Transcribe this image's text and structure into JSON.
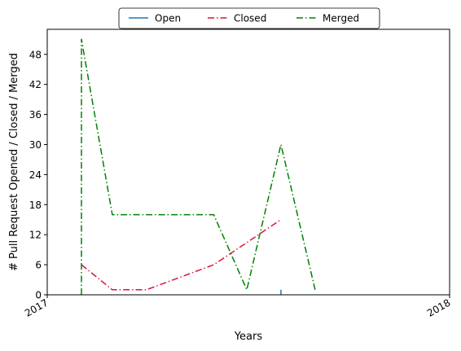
{
  "chart_data": {
    "type": "line",
    "xlabel": "Years",
    "ylabel": "# Pull Request Opened / Closed / Merged",
    "x_ticks": [
      "2017",
      "2018"
    ],
    "y_ticks": [
      0,
      6,
      12,
      18,
      24,
      30,
      36,
      42,
      48
    ],
    "ylim": [
      0,
      53
    ],
    "xlim": [
      "2017-01-01",
      "2018-01-01"
    ],
    "grid": false,
    "legend_position": "top-center",
    "series": [
      {
        "name": "Open",
        "color": "#1f77b4",
        "dash": "solid",
        "points": [
          {
            "x": "2017-08-01",
            "y": 0
          },
          {
            "x": "2017-08-01",
            "y": 1
          }
        ]
      },
      {
        "name": "Closed",
        "color": "#dc143c",
        "dash": "dashdot",
        "points": [
          {
            "x": "2017-02-01",
            "y": 6
          },
          {
            "x": "2017-03-01",
            "y": 1
          },
          {
            "x": "2017-04-01",
            "y": 1
          },
          {
            "x": "2017-06-01",
            "y": 6
          },
          {
            "x": "2017-08-01",
            "y": 15
          }
        ]
      },
      {
        "name": "Merged",
        "color": "#008000",
        "dash": "dashdot",
        "points": [
          {
            "x": "2017-02-01",
            "y": 0
          },
          {
            "x": "2017-02-01",
            "y": 51
          },
          {
            "x": "2017-03-01",
            "y": 16
          },
          {
            "x": "2017-06-01",
            "y": 16
          },
          {
            "x": "2017-07-01",
            "y": 1
          },
          {
            "x": "2017-08-01",
            "y": 30
          },
          {
            "x": "2017-09-01",
            "y": 1
          }
        ]
      }
    ]
  }
}
